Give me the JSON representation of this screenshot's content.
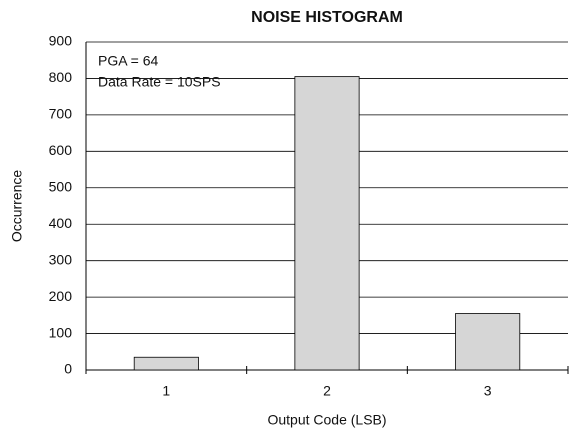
{
  "chart_data": {
    "type": "bar",
    "title": "NOISE HISTOGRAM",
    "x_label": "Output Code (LSB)",
    "y_label": "Occurrence",
    "annotations": [
      "PGA = 64",
      "Data Rate = 10SPS"
    ],
    "categories": [
      "1",
      "2",
      "3"
    ],
    "values": [
      35,
      805,
      155
    ],
    "color": "#d6d6d6",
    "ylim": [
      0,
      900
    ],
    "yticks": [
      0,
      100,
      200,
      300,
      400,
      500,
      600,
      700,
      800,
      900
    ],
    "grid": true
  }
}
